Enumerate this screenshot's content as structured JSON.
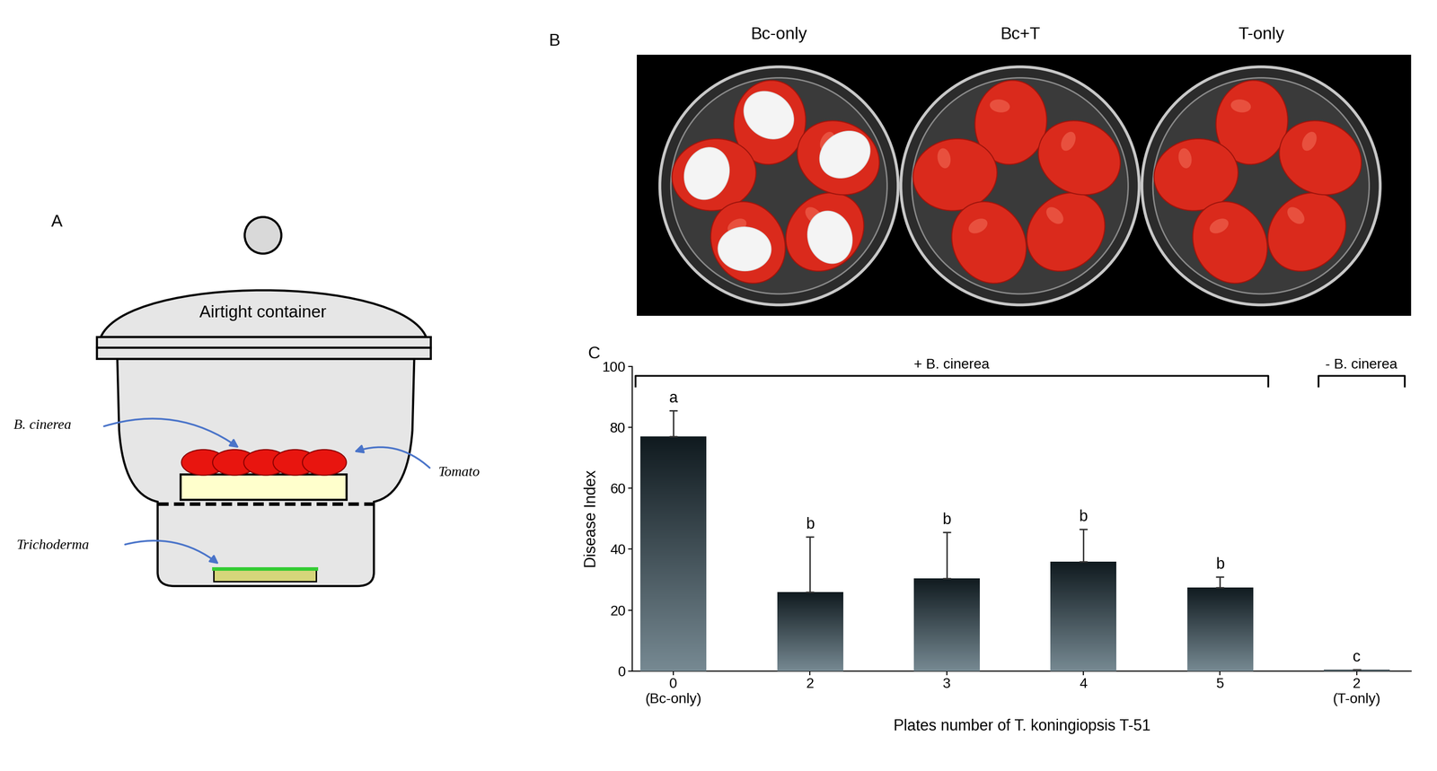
{
  "panels": {
    "A": {
      "label": "A",
      "texts": {
        "container": "Airtight container",
        "pathogen": "B. cinerea",
        "fruit": "Tomato",
        "antagonist": "Trichoderma"
      }
    },
    "B": {
      "label": "B",
      "treatments": [
        "Bc-only",
        "Bc+T",
        "T-only"
      ]
    },
    "C": {
      "label": "C"
    }
  },
  "chart_data": {
    "type": "bar",
    "categories": [
      "0\n(Bc-only)",
      "2",
      "3",
      "4",
      "5",
      "2\n(T-only)"
    ],
    "values": [
      77,
      26,
      30.5,
      36,
      27.5,
      0.5
    ],
    "errors": [
      8.5,
      18,
      15,
      10.5,
      3.5,
      0
    ],
    "significance": [
      "a",
      "b",
      "b",
      "b",
      "b",
      "c"
    ],
    "groups": [
      {
        "label": "+ B. cinerea",
        "from": "0\n(Bc-only)",
        "to": "5"
      },
      {
        "label": "- B. cinerea",
        "from": "2\n(T-only)",
        "to": "2\n(T-only)"
      }
    ],
    "color": "#2d4a58",
    "xlabel": "Plates number of T. koningiopsis T-51",
    "ylabel": "Disease Index",
    "ylim": [
      0,
      100
    ],
    "yticks": [
      0,
      20,
      40,
      60,
      80,
      100
    ]
  }
}
